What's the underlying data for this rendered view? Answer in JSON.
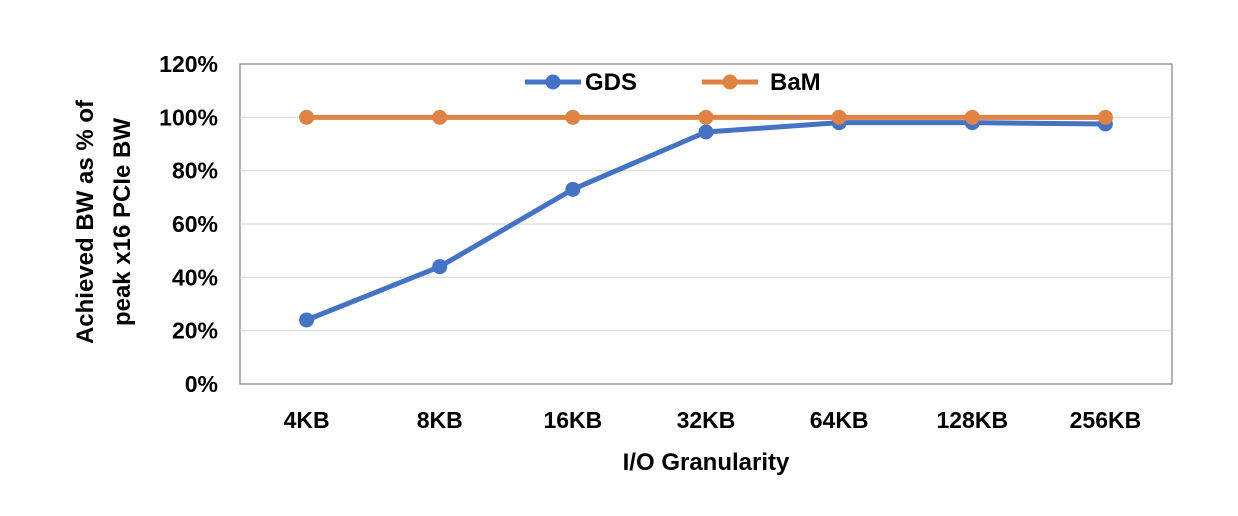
{
  "chart_data": {
    "type": "line",
    "categories": [
      "4KB",
      "8KB",
      "16KB",
      "32KB",
      "64KB",
      "128KB",
      "256KB"
    ],
    "series": [
      {
        "name": "GDS",
        "color": "#4472C4",
        "values": [
          24,
          44,
          73,
          94.5,
          98,
          98,
          97.5
        ]
      },
      {
        "name": "BaM",
        "color": "#DE8344",
        "values": [
          100,
          100,
          100,
          100,
          100,
          100,
          100
        ]
      }
    ],
    "xlabel": "I/O Granularity",
    "ylabel_lines": [
      "Achieved BW as % of",
      "peak x16 PCIe BW"
    ],
    "ylim": [
      0,
      120
    ],
    "yticks": [
      0,
      20,
      40,
      60,
      80,
      100,
      120
    ],
    "ytick_labels": [
      "0%",
      "20%",
      "40%",
      "60%",
      "80%",
      "100%",
      "120%"
    ],
    "grid": "horizontal",
    "legend_position": "top-center"
  }
}
